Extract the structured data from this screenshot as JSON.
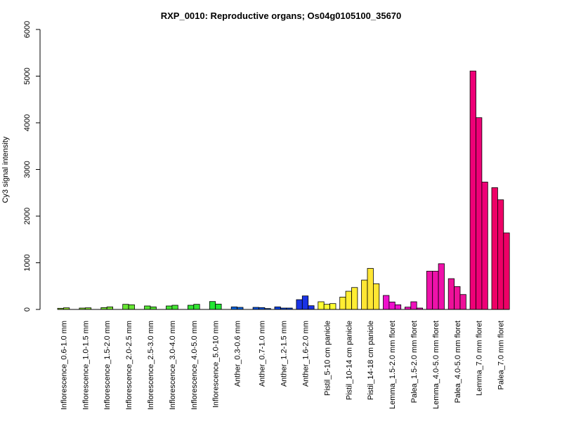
{
  "chart_data": {
    "type": "bar",
    "title": "RXP_0010: Reproductive organs; Os04g0105100_35670",
    "xlabel": "",
    "ylabel": "Cy3 signal intensity",
    "ylim": [
      0,
      6000
    ],
    "yticks": [
      0,
      1000,
      2000,
      3000,
      4000,
      5000,
      6000
    ],
    "grid": false,
    "legend": "none",
    "groups": [
      {
        "label": "Inflorescence_0.6-1.0 mm",
        "color": "#99e633",
        "values": [
          25,
          35
        ]
      },
      {
        "label": "Inflorescence_1.0-1.5 mm",
        "color": "#88e633",
        "values": [
          30,
          35
        ]
      },
      {
        "label": "Inflorescence_1.5-2.0 mm",
        "color": "#77e633",
        "values": [
          40,
          55
        ]
      },
      {
        "label": "Inflorescence_2.0-2.5 mm",
        "color": "#66e633",
        "values": [
          110,
          100
        ]
      },
      {
        "label": "Inflorescence_2.5-3.0 mm",
        "color": "#55e633",
        "values": [
          75,
          55
        ]
      },
      {
        "label": "Inflorescence_3.0-4.0 mm",
        "color": "#44e633",
        "values": [
          75,
          90
        ]
      },
      {
        "label": "Inflorescence_4.0-5.0 mm",
        "color": "#33e633",
        "values": [
          90,
          110
        ]
      },
      {
        "label": "Inflorescence_5.0-10 mm",
        "color": "#22e633",
        "values": [
          170,
          115
        ]
      },
      {
        "label": "Anther_0.3-0.6 mm",
        "color": "#0066e6",
        "values": [
          55,
          45
        ]
      },
      {
        "label": "Anther_0.7-1.0 mm",
        "color": "#0055e6",
        "values": [
          45,
          40,
          20
        ]
      },
      {
        "label": "Anther_1.2-1.5 mm",
        "color": "#0044e6",
        "values": [
          55,
          30,
          30
        ]
      },
      {
        "label": "Anther_1.6-2.0 mm",
        "color": "#1a33e6",
        "values": [
          210,
          290,
          80
        ]
      },
      {
        "label": "Pistil_5-10 cm panicle",
        "color": "#ffff33",
        "values": [
          165,
          110,
          125
        ]
      },
      {
        "label": "Pistil_10-14 cm panicle",
        "color": "#ffee33",
        "values": [
          265,
          390,
          470
        ]
      },
      {
        "label": "Pistil_14-18 cm panicle",
        "color": "#ffe633",
        "values": [
          630,
          880,
          550
        ]
      },
      {
        "label": "Lemma_1.5-2.0 mm floret",
        "color": "#ee11cc",
        "values": [
          300,
          160,
          100
        ]
      },
      {
        "label": "Palea_1.5-2.0 mm floret",
        "color": "#ee11bb",
        "values": [
          50,
          165,
          30
        ]
      },
      {
        "label": "Lemma_4.0-5.0 mm floret",
        "color": "#ee11aa",
        "values": [
          820,
          820,
          980
        ]
      },
      {
        "label": "Palea_4.0-5.0 mm floret",
        "color": "#ee1199",
        "values": [
          660,
          490,
          320
        ]
      },
      {
        "label": "Lemma_7.0 mm floret",
        "color": "#ee0077",
        "values": [
          5110,
          4110,
          2730
        ]
      },
      {
        "label": "Palea_7.0 mm floret",
        "color": "#ee0066",
        "values": [
          2610,
          2350,
          1640
        ]
      }
    ]
  }
}
